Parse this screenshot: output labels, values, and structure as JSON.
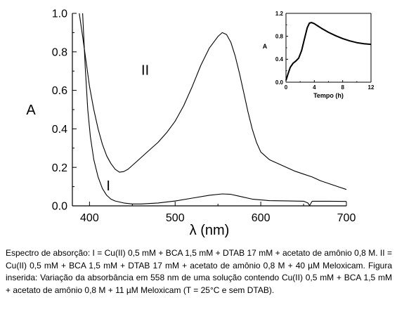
{
  "chart_data": [
    {
      "type": "line",
      "title": "",
      "xlabel": "λ (nm)",
      "ylabel": "A",
      "xlim": [
        380,
        700
      ],
      "ylim": [
        0.0,
        1.0
      ],
      "x_ticks": [
        "400",
        "500",
        "600",
        "700"
      ],
      "y_ticks": [
        "0.0",
        "0.2",
        "0.4",
        "0.6",
        "0.8",
        "1.0"
      ],
      "grid": false,
      "series": [
        {
          "name": "II",
          "label_at": [
            465,
            0.68
          ],
          "x": [
            388,
            392,
            396,
            400,
            405,
            410,
            415,
            420,
            425,
            430,
            435,
            440,
            445,
            450,
            460,
            470,
            480,
            490,
            500,
            510,
            520,
            530,
            540,
            550,
            555,
            560,
            565,
            570,
            575,
            580,
            585,
            590,
            595,
            600,
            610,
            620,
            630,
            640,
            650,
            660,
            670,
            680,
            690,
            700
          ],
          "values": [
            1.0,
            0.88,
            0.75,
            0.62,
            0.5,
            0.4,
            0.32,
            0.26,
            0.22,
            0.19,
            0.175,
            0.178,
            0.19,
            0.21,
            0.25,
            0.29,
            0.33,
            0.38,
            0.44,
            0.52,
            0.62,
            0.73,
            0.82,
            0.88,
            0.9,
            0.89,
            0.85,
            0.78,
            0.69,
            0.59,
            0.49,
            0.4,
            0.33,
            0.28,
            0.24,
            0.22,
            0.2,
            0.18,
            0.165,
            0.15,
            0.13,
            0.115,
            0.1,
            0.085
          ]
        },
        {
          "name": "I",
          "label_at": [
            422,
            0.08
          ],
          "x": [
            392,
            395,
            398,
            401,
            405,
            410,
            415,
            420,
            425,
            430,
            440,
            450,
            460,
            480,
            500,
            520,
            540,
            555,
            565,
            575,
            590,
            610,
            630,
            650,
            655,
            657,
            660,
            680,
            700
          ],
          "values": [
            1.0,
            0.72,
            0.5,
            0.36,
            0.24,
            0.15,
            0.09,
            0.055,
            0.035,
            0.025,
            0.015,
            0.01,
            0.01,
            0.015,
            0.025,
            0.04,
            0.055,
            0.062,
            0.06,
            0.05,
            0.035,
            0.027,
            0.026,
            0.024,
            0.015,
            0.002,
            0.024,
            0.024,
            0.023
          ]
        }
      ]
    },
    {
      "type": "line",
      "title": "",
      "xlabel": "Tempo (h)",
      "ylabel": "A",
      "xlim": [
        0,
        12
      ],
      "ylim": [
        0.0,
        1.2
      ],
      "x_ticks": [
        "0",
        "4",
        "8",
        "12"
      ],
      "y_ticks": [
        "0.0",
        "0.4",
        "0.8",
        "1.2"
      ],
      "grid": false,
      "series": [
        {
          "x": [
            0,
            0.3,
            0.6,
            1.0,
            1.4,
            1.8,
            2.2,
            2.6,
            3.0,
            3.3,
            3.6,
            4.0,
            4.5,
            5.0,
            6.0,
            7.0,
            8.0,
            9.0,
            10.0,
            11.0,
            12.0
          ],
          "values": [
            0.03,
            0.15,
            0.26,
            0.33,
            0.37,
            0.42,
            0.55,
            0.75,
            0.95,
            1.03,
            1.04,
            1.02,
            0.98,
            0.94,
            0.87,
            0.81,
            0.76,
            0.72,
            0.69,
            0.67,
            0.66
          ]
        }
      ]
    }
  ],
  "caption": "Espectro de absorção: I = Cu(II) 0,5 mM + BCA 1,5 mM + DTAB 17 mM + acetato de amônio 0,8 M. II = Cu(II) 0,5 mM + BCA 1,5 mM + DTAB 17 mM + acetato de amônio 0,8 M + 40 µM Meloxicam. Figura inserida: Variação da absorbância em 558 nm de uma solução contendo Cu(II) 0,5 mM + BCA 1,5 mM + acetato de amônio 0,8 M + 11 µM Meloxicam (T = 25°C e sem DTAB)."
}
